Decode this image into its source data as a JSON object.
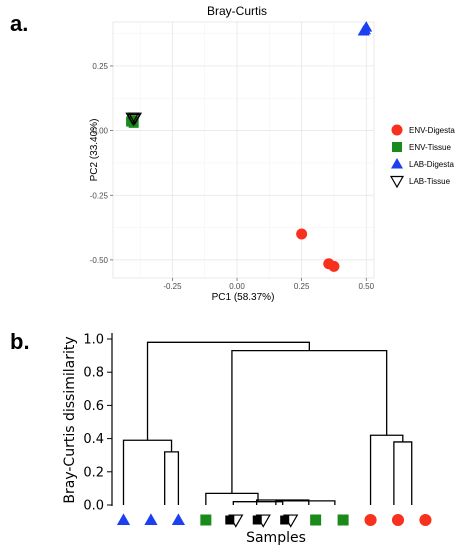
{
  "panels": {
    "a": "a.",
    "b": "b."
  },
  "chart_data": [
    {
      "type": "scatter",
      "title": "Bray-Curtis",
      "xlabel": "PC1 (58.37%)",
      "ylabel": "PC2 (33.40%)",
      "xlim": [
        -0.48,
        0.53
      ],
      "ylim": [
        -0.57,
        0.42
      ],
      "xticks": [
        -0.25,
        0.0,
        0.25,
        0.5
      ],
      "xtick_labels": [
        "-0.25",
        "0.00",
        "0.25",
        "0.50"
      ],
      "yticks": [
        -0.5,
        -0.25,
        0.0,
        0.25
      ],
      "ytick_labels": [
        "-0.50",
        "-0.25",
        "0.00",
        "0.25"
      ],
      "grid": true,
      "legend_position": "right",
      "series": [
        {
          "name": "ENV-Digesta",
          "marker": "circle",
          "color": "#f8311e",
          "points": [
            [
              0.25,
              -0.4
            ],
            [
              0.355,
              -0.515
            ],
            [
              0.375,
              -0.525
            ]
          ]
        },
        {
          "name": "ENV-Tissue",
          "marker": "square",
          "color": "#1a8a1a",
          "points": [
            [
              -0.41,
              0.035
            ],
            [
              -0.405,
              0.04
            ],
            [
              -0.4,
              0.03
            ]
          ]
        },
        {
          "name": "LAB-Digesta",
          "marker": "triangle",
          "color": "#1c3ff0",
          "points": [
            [
              0.49,
              0.385
            ],
            [
              0.495,
              0.39
            ],
            [
              0.5,
              0.4
            ]
          ]
        },
        {
          "name": "LAB-Tissue",
          "marker": "triangle-down-open",
          "color": "#000000",
          "points": [
            [
              -0.405,
              0.05
            ],
            [
              -0.4,
              0.045
            ],
            [
              -0.395,
              0.05
            ]
          ]
        }
      ]
    },
    {
      "type": "dendrogram",
      "title": "",
      "xlabel": "Samples",
      "ylabel": "Bray-Curtis dissimilarity",
      "ylim": [
        0,
        1.0
      ],
      "yticks": [
        0.0,
        0.2,
        0.4,
        0.6,
        0.8,
        1.0
      ],
      "ytick_labels": [
        "0.0",
        "0.2",
        "0.4",
        "0.6",
        "0.8",
        "1.0"
      ],
      "leaves": [
        {
          "group": "LAB-Digesta",
          "marker": "triangle",
          "color": "#1c3ff0"
        },
        {
          "group": "LAB-Digesta",
          "marker": "triangle",
          "color": "#1c3ff0"
        },
        {
          "group": "LAB-Digesta",
          "marker": "triangle",
          "color": "#1c3ff0"
        },
        {
          "group": "ENV-Tissue",
          "marker": "square",
          "color": "#1a8a1a"
        },
        {
          "group": "ENV-Tissue+LAB-Tissue",
          "marker": "square+triangle-down-open",
          "color": "#1a8a1a"
        },
        {
          "group": "ENV-Tissue+LAB-Tissue",
          "marker": "square+triangle-down-open",
          "color": "#1a8a1a"
        },
        {
          "group": "ENV-Tissue+LAB-Tissue",
          "marker": "square+triangle-down-open",
          "color": "#1a8a1a"
        },
        {
          "group": "ENV-Tissue",
          "marker": "square",
          "color": "#1a8a1a"
        },
        {
          "group": "ENV-Tissue",
          "marker": "square",
          "color": "#1a8a1a"
        },
        {
          "group": "ENV-Digesta",
          "marker": "circle",
          "color": "#f8311e"
        },
        {
          "group": "ENV-Digesta",
          "marker": "circle",
          "color": "#f8311e"
        },
        {
          "group": "ENV-Digesta",
          "marker": "circle",
          "color": "#f8311e"
        }
      ],
      "merges": [
        {
          "left": 1.5,
          "right": 2.0,
          "height": 0.32
        },
        {
          "left": 0.0,
          "right": 1.75,
          "height": 0.39
        },
        {
          "left": 9.85,
          "right": 10.5,
          "height": 0.38
        },
        {
          "left": 9.0,
          "right": 10.175,
          "height": 0.42
        },
        {
          "left": 5.55,
          "right": 7.7,
          "height": 0.025
        },
        {
          "left": 4.85,
          "right": 6.75,
          "height": 0.03
        },
        {
          "left": 4.0,
          "right": 5.8,
          "height": 0.02
        },
        {
          "left": 3.0,
          "right": 4.9,
          "height": 0.07
        },
        {
          "left": 3.95,
          "right": 9.5875,
          "height": 0.93
        },
        {
          "left": 0.875,
          "right": 6.77,
          "height": 0.98
        }
      ],
      "merge_stems": [
        {
          "x": 5.55,
          "from": 0.0
        },
        {
          "x": 7.7,
          "from": 0.0
        },
        {
          "x": 4.85,
          "from": 0.0
        },
        {
          "x": 6.75,
          "from": 0.025
        },
        {
          "x": 4.0,
          "from": 0.0
        },
        {
          "x": 5.8,
          "from": 0.03
        },
        {
          "x": 3.0,
          "from": 0.0
        },
        {
          "x": 4.9,
          "from": 0.02
        }
      ]
    }
  ]
}
